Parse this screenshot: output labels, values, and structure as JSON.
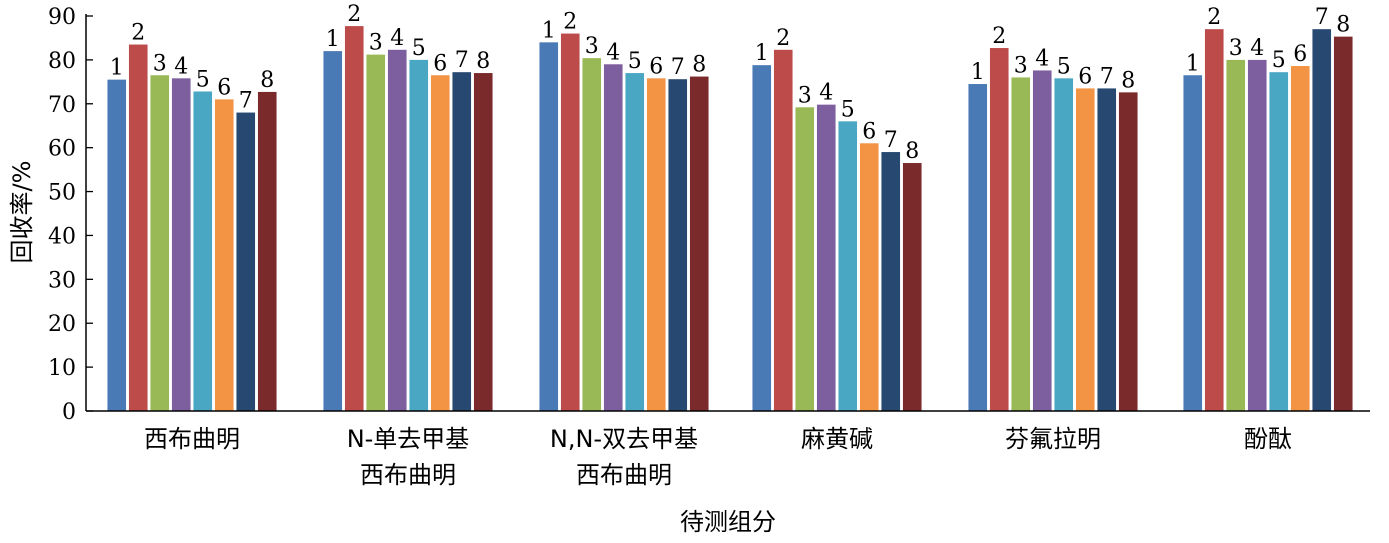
{
  "chart_data": {
    "type": "bar",
    "ylabel": "回收率/%",
    "xlabel": "待测组分",
    "ylim": [
      0,
      90
    ],
    "yticks": [
      0,
      10,
      20,
      30,
      40,
      50,
      60,
      70,
      80,
      90
    ],
    "categories": [
      [
        "西布曲明"
      ],
      [
        "N-单去甲基",
        "西布曲明"
      ],
      [
        "N,N-双去甲基",
        "西布曲明"
      ],
      [
        "麻黄碱"
      ],
      [
        "芬氟拉明"
      ],
      [
        "酚酞"
      ]
    ],
    "series": [
      {
        "name": "1",
        "color": "#4a7ab5",
        "values": [
          75.5,
          82.0,
          84.0,
          78.8,
          74.5,
          76.5
        ]
      },
      {
        "name": "2",
        "color": "#bc4b4a",
        "values": [
          83.5,
          87.7,
          86.0,
          82.3,
          82.7,
          87.0
        ]
      },
      {
        "name": "3",
        "color": "#98b955",
        "values": [
          76.5,
          81.2,
          80.4,
          69.2,
          76.0,
          80.0
        ]
      },
      {
        "name": "4",
        "color": "#7d5e9e",
        "values": [
          75.8,
          82.3,
          79.0,
          69.8,
          77.6,
          80.0
        ]
      },
      {
        "name": "5",
        "color": "#4aa7c4",
        "values": [
          72.8,
          80.0,
          77.0,
          66.0,
          75.8,
          77.2
        ]
      },
      {
        "name": "6",
        "color": "#f29443",
        "values": [
          71.0,
          76.5,
          75.8,
          61.0,
          73.5,
          78.6
        ]
      },
      {
        "name": "7",
        "color": "#274870",
        "values": [
          68.0,
          77.2,
          75.6,
          59.0,
          73.5,
          87.0
        ]
      },
      {
        "name": "8",
        "color": "#7a2a2a",
        "values": [
          72.7,
          77.0,
          76.2,
          56.5,
          72.6,
          85.3
        ]
      }
    ],
    "bar_labels_shown": true,
    "grid": false,
    "legend": "none"
  }
}
